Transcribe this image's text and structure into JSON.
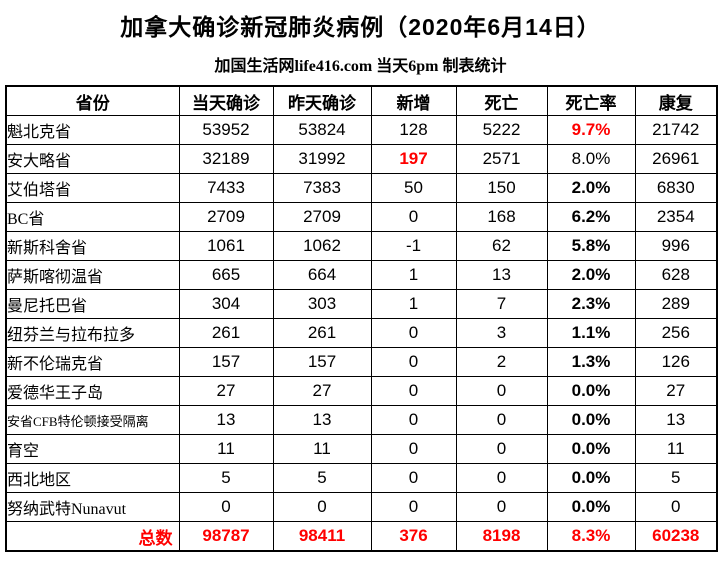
{
  "title": "加拿大确诊新冠肺炎病例（2020年6月14日）",
  "subtitle": "加国生活网life416.com 当天6pm 制表统计",
  "colors": {
    "highlight_red": "#FF0000",
    "border": "#000000",
    "background": "#ffffff"
  },
  "table": {
    "headers": [
      "省份",
      "当天确诊",
      "昨天确诊",
      "新增",
      "死亡",
      "死亡率",
      "康复"
    ],
    "rows": [
      {
        "province": "魁北克省",
        "today": "53952",
        "yesterday": "53824",
        "new": "128",
        "deaths": "5222",
        "rate": "9.7%",
        "recovered": "21742",
        "rate_style": "red",
        "new_style": "normal",
        "province_small": false
      },
      {
        "province": "安大略省",
        "today": "32189",
        "yesterday": "31992",
        "new": "197",
        "deaths": "2571",
        "rate": "8.0%",
        "recovered": "26961",
        "rate_style": "normal",
        "new_style": "red",
        "province_small": false
      },
      {
        "province": "艾伯塔省",
        "today": "7433",
        "yesterday": "7383",
        "new": "50",
        "deaths": "150",
        "rate": "2.0%",
        "recovered": "6830",
        "rate_style": "bold",
        "new_style": "normal",
        "province_small": false
      },
      {
        "province": "BC省",
        "today": "2709",
        "yesterday": "2709",
        "new": "0",
        "deaths": "168",
        "rate": "6.2%",
        "recovered": "2354",
        "rate_style": "bold",
        "new_style": "normal",
        "province_small": false
      },
      {
        "province": "新斯科舍省",
        "today": "1061",
        "yesterday": "1062",
        "new": "-1",
        "deaths": "62",
        "rate": "5.8%",
        "recovered": "996",
        "rate_style": "bold",
        "new_style": "normal",
        "province_small": false
      },
      {
        "province": "萨斯喀彻温省",
        "today": "665",
        "yesterday": "664",
        "new": "1",
        "deaths": "13",
        "rate": "2.0%",
        "recovered": "628",
        "rate_style": "bold",
        "new_style": "normal",
        "province_small": false
      },
      {
        "province": "曼尼托巴省",
        "today": "304",
        "yesterday": "303",
        "new": "1",
        "deaths": "7",
        "rate": "2.3%",
        "recovered": "289",
        "rate_style": "bold",
        "new_style": "normal",
        "province_small": false
      },
      {
        "province": "纽芬兰与拉布拉多",
        "today": "261",
        "yesterday": "261",
        "new": "0",
        "deaths": "3",
        "rate": "1.1%",
        "recovered": "256",
        "rate_style": "bold",
        "new_style": "normal",
        "province_small": false
      },
      {
        "province": "新不伦瑞克省",
        "today": "157",
        "yesterday": "157",
        "new": "0",
        "deaths": "2",
        "rate": "1.3%",
        "recovered": "126",
        "rate_style": "bold",
        "new_style": "normal",
        "province_small": false
      },
      {
        "province": "爱德华王子岛",
        "today": "27",
        "yesterday": "27",
        "new": "0",
        "deaths": "0",
        "rate": "0.0%",
        "recovered": "27",
        "rate_style": "bold",
        "new_style": "normal",
        "province_small": false
      },
      {
        "province": "安省CFB特伦顿接受隔离",
        "today": "13",
        "yesterday": "13",
        "new": "0",
        "deaths": "0",
        "rate": "0.0%",
        "recovered": "13",
        "rate_style": "bold",
        "new_style": "normal",
        "province_small": true
      },
      {
        "province": "育空",
        "today": "11",
        "yesterday": "11",
        "new": "0",
        "deaths": "0",
        "rate": "0.0%",
        "recovered": "11",
        "rate_style": "bold",
        "new_style": "normal",
        "province_small": false
      },
      {
        "province": "西北地区",
        "today": "5",
        "yesterday": "5",
        "new": "0",
        "deaths": "0",
        "rate": "0.0%",
        "recovered": "5",
        "rate_style": "bold",
        "new_style": "normal",
        "province_small": false
      },
      {
        "province": "努纳武特Nunavut",
        "today": "0",
        "yesterday": "0",
        "new": "0",
        "deaths": "0",
        "rate": "0.0%",
        "recovered": "0",
        "rate_style": "bold",
        "new_style": "normal",
        "province_small": false
      }
    ],
    "total": {
      "label": "总数",
      "today": "98787",
      "yesterday": "98411",
      "new": "376",
      "deaths": "8198",
      "rate": "8.3%",
      "recovered": "60238"
    }
  }
}
